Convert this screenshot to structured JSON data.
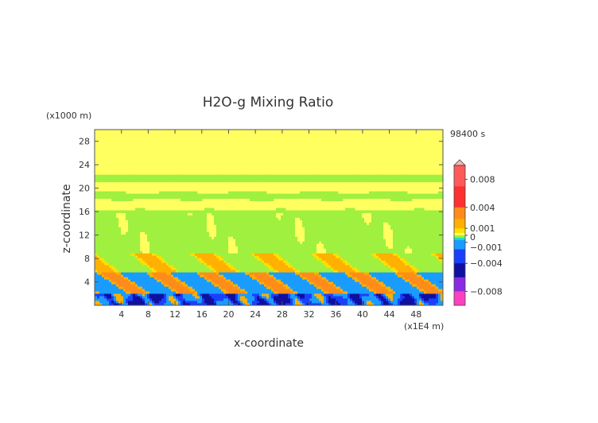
{
  "chart_data": {
    "type": "heatmap",
    "title": "H2O-g Mixing Ratio",
    "xlabel": "x-coordinate",
    "ylabel": "z-coordinate",
    "x_unit": "(x1E4 m)",
    "y_unit": "(x1000 m)",
    "time_label": "98400 s",
    "xlim": [
      0,
      52
    ],
    "ylim": [
      0,
      30
    ],
    "x_ticks": [
      4,
      8,
      12,
      16,
      20,
      24,
      28,
      32,
      36,
      40,
      44,
      48
    ],
    "y_ticks": [
      4,
      8,
      12,
      16,
      20,
      24,
      28
    ],
    "colorbar": {
      "range": [
        -0.01,
        0.01
      ],
      "labeled_values": [
        0.008,
        0.004,
        0.001,
        0,
        -0.001,
        -0.004,
        -0.008
      ],
      "labels": [
        "0.008",
        "0.004",
        "0.001",
        "0",
        "−0.001",
        "−0.004",
        "−0.008"
      ],
      "stops": [
        {
          "v": 0.01,
          "color": "#ffb6b6"
        },
        {
          "v": 0.007,
          "color": "#ff5a5a"
        },
        {
          "v": 0.004,
          "color": "#ff3030"
        },
        {
          "v": 0.0025,
          "color": "#ff8c1a"
        },
        {
          "v": 0.001,
          "color": "#ffb000"
        },
        {
          "v": 0.0005,
          "color": "#ffe000"
        },
        {
          "v": 0.0,
          "color": "#ffff60"
        },
        {
          "v": -0.0003,
          "color": "#a0f040"
        },
        {
          "v": -0.0008,
          "color": "#20e0c0"
        },
        {
          "v": -0.002,
          "color": "#1a9cff"
        },
        {
          "v": -0.004,
          "color": "#1a40ff"
        },
        {
          "v": -0.006,
          "color": "#1010a0"
        },
        {
          "v": -0.008,
          "color": "#8a2be2"
        },
        {
          "v": -0.01,
          "color": "#ff40c0"
        }
      ]
    },
    "field_description_levels": {
      "background_upper": 0.0,
      "bands_green": -0.0003,
      "lower_orange": 0.0015,
      "lower_blue": -0.002
    }
  }
}
